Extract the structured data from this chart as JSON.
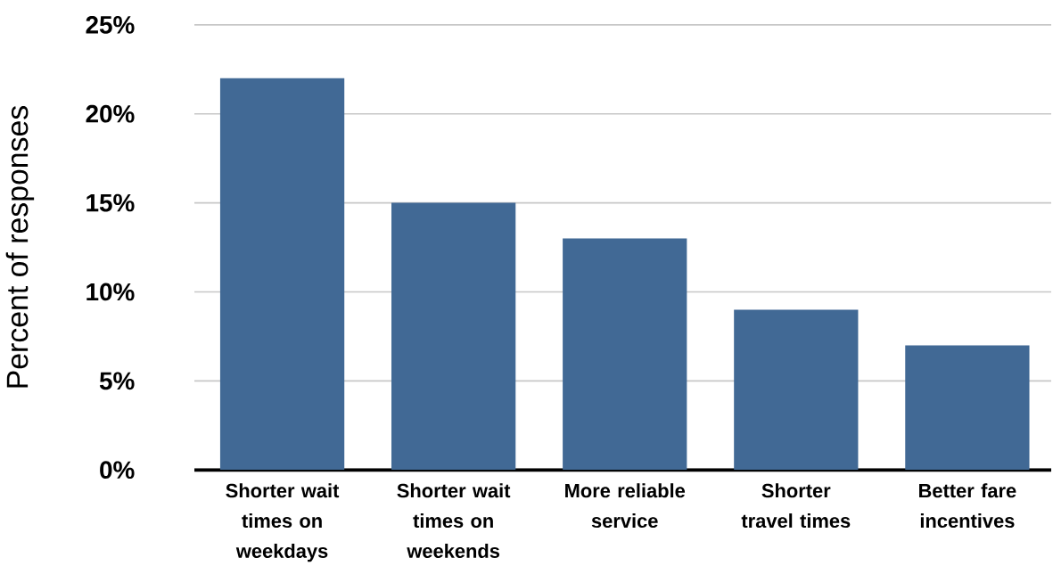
{
  "chart_data": {
    "type": "bar",
    "ylabel": "Percent of responses",
    "categories": [
      "Shorter wait times on weekdays",
      "Shorter wait times on weekends",
      "More reliable service",
      "Shorter travel times",
      "Better fare incentives"
    ],
    "values": [
      22,
      15,
      13,
      9,
      7
    ],
    "color": "#416995",
    "ylim": [
      0,
      25
    ],
    "yticks": [
      {
        "value": 0,
        "label": "0%"
      },
      {
        "value": 5,
        "label": "5%"
      },
      {
        "value": 10,
        "label": "10%"
      },
      {
        "value": 15,
        "label": "15%"
      },
      {
        "value": 20,
        "label": "20%"
      },
      {
        "value": 25,
        "label": "25%"
      }
    ],
    "grid": "y"
  }
}
